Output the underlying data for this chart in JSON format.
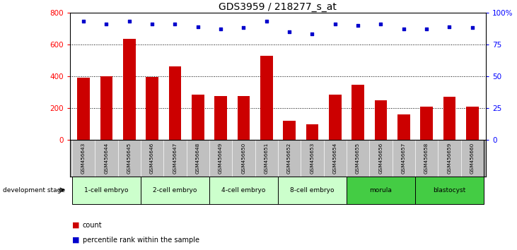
{
  "title": "GDS3959 / 218277_s_at",
  "samples": [
    "GSM456643",
    "GSM456644",
    "GSM456645",
    "GSM456646",
    "GSM456647",
    "GSM456648",
    "GSM456649",
    "GSM456650",
    "GSM456651",
    "GSM456652",
    "GSM456653",
    "GSM456654",
    "GSM456655",
    "GSM456656",
    "GSM456657",
    "GSM456658",
    "GSM456659",
    "GSM456660"
  ],
  "counts": [
    390,
    400,
    635,
    395,
    460,
    285,
    278,
    278,
    530,
    120,
    100,
    285,
    345,
    248,
    160,
    210,
    270,
    210
  ],
  "percentile_ranks": [
    93,
    91,
    93,
    91,
    91,
    89,
    87,
    88,
    93,
    85,
    83,
    91,
    90,
    91,
    87,
    87,
    89,
    88
  ],
  "stages": [
    {
      "label": "1-cell embryo",
      "start": 0,
      "end": 3
    },
    {
      "label": "2-cell embryo",
      "start": 3,
      "end": 6
    },
    {
      "label": "4-cell embryo",
      "start": 6,
      "end": 9
    },
    {
      "label": "8-cell embryo",
      "start": 9,
      "end": 12
    },
    {
      "label": "morula",
      "start": 12,
      "end": 15
    },
    {
      "label": "blastocyst",
      "start": 15,
      "end": 18
    }
  ],
  "stage_light_color": "#ccffcc",
  "stage_dark_color": "#44cc44",
  "stage_dark_indices": [
    4,
    5
  ],
  "bar_color": "#cc0000",
  "dot_color": "#0000cc",
  "ylim_left": [
    0,
    800
  ],
  "ylim_right": [
    0,
    100
  ],
  "yticks_left": [
    0,
    200,
    400,
    600,
    800
  ],
  "yticks_right": [
    0,
    25,
    50,
    75,
    100
  ],
  "yticklabels_right": [
    "0",
    "25",
    "50",
    "75",
    "100%"
  ],
  "grid_values": [
    200,
    400,
    600,
    800
  ],
  "bg_color": "#ffffff",
  "sample_bg_color": "#c0c0c0",
  "title_fontsize": 10,
  "bar_width": 0.55,
  "dev_stage_label": "development stage"
}
